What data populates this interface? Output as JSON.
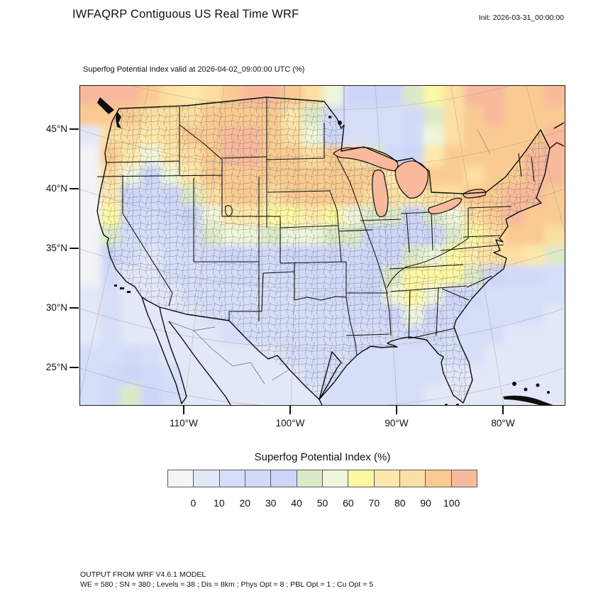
{
  "header": {
    "title": "IWFAQRP Contiguous US Real Time WRF",
    "init_label": "Init: 2026-03-31_00:00:00"
  },
  "map": {
    "subtitle": "Superfog Potential Index valid at 2026-04-02_09:00:00 UTC   (%)",
    "lat_ticks": [
      "45°N",
      "40°N",
      "35°N",
      "30°N",
      "25°N"
    ],
    "lon_ticks": [
      "110°W",
      "100°W",
      "90°W",
      "80°W"
    ]
  },
  "colorbar": {
    "title": "Superfog Potential Index  (%)"
  },
  "footer": {
    "line1": "OUTPUT FROM WRF V4.6.1 MODEL",
    "line2": "WE = 580 ; SN = 380 ; Levels = 38 ; Dis = 8km ; Phys Opt = 8 ; PBL Opt = 1 ; Cu Opt = 5"
  },
  "chart_data": {
    "type": "heatmap",
    "title": "Superfog Potential Index valid at 2026-04-02_09:00:00 UTC (%)",
    "units": "%",
    "legend_title": "Superfog Potential Index  (%)",
    "levels": [
      0,
      10,
      20,
      30,
      40,
      50,
      60,
      70,
      80,
      90,
      100
    ],
    "colors": [
      "#f2f4f8",
      "#e3e8f8",
      "#d6def8",
      "#d2daf8",
      "#cdd5f8",
      "#dce9c8",
      "#eff6dc",
      "#fdf8a2",
      "#fde8ac",
      "#fcdfa2",
      "#f9cb92",
      "#f8b99c"
    ],
    "x_axis_ticks": [
      "110°W",
      "100°W",
      "90°W",
      "80°W"
    ],
    "y_axis_ticks": [
      "45°N",
      "40°N",
      "35°N",
      "30°N",
      "25°N"
    ],
    "grid": {
      "cols": 24,
      "rows": 16,
      "note": "Estimated Superfog Potential Index (%) field on a coarse grid over the plot domain, NW corner first, row-major; values >100 fall in the last (salmon) bin, values <0 in the first (white) bin",
      "values": [
        [
          105,
          105,
          100,
          95,
          85,
          78,
          85,
          95,
          105,
          105,
          95,
          85,
          55,
          35,
          30,
          35,
          45,
          60,
          85,
          100,
          105,
          95,
          95,
          105
        ],
        [
          92,
          95,
          90,
          85,
          80,
          85,
          92,
          95,
          95,
          90,
          75,
          45,
          25,
          18,
          15,
          18,
          25,
          45,
          80,
          95,
          105,
          95,
          92,
          95
        ],
        [
          4,
          85,
          80,
          70,
          80,
          90,
          95,
          105,
          105,
          95,
          85,
          55,
          30,
          15,
          12,
          15,
          25,
          50,
          85,
          95,
          95,
          92,
          92,
          105
        ],
        [
          -2,
          92,
          75,
          55,
          70,
          85,
          95,
          105,
          105,
          95,
          92,
          80,
          92,
          85,
          40,
          20,
          35,
          75,
          95,
          92,
          90,
          95,
          105,
          105
        ],
        [
          -2,
          85,
          55,
          35,
          55,
          75,
          90,
          95,
          95,
          90,
          95,
          95,
          92,
          95,
          90,
          70,
          85,
          95,
          90,
          85,
          92,
          95,
          105,
          105
        ],
        [
          -2,
          70,
          30,
          20,
          30,
          45,
          80,
          90,
          90,
          85,
          90,
          95,
          90,
          92,
          85,
          80,
          75,
          80,
          85,
          90,
          95,
          105,
          105,
          95
        ],
        [
          -2,
          60,
          20,
          15,
          20,
          30,
          55,
          75,
          70,
          60,
          65,
          70,
          60,
          55,
          48,
          40,
          38,
          45,
          55,
          80,
          95,
          105,
          95,
          90
        ],
        [
          -2,
          45,
          15,
          10,
          15,
          25,
          40,
          55,
          50,
          45,
          50,
          55,
          45,
          40,
          35,
          30,
          30,
          35,
          45,
          65,
          85,
          95,
          90,
          80
        ],
        [
          -2,
          30,
          10,
          8,
          12,
          18,
          25,
          30,
          28,
          25,
          30,
          35,
          30,
          28,
          30,
          35,
          42,
          55,
          65,
          72,
          80,
          85,
          70,
          45
        ],
        [
          -2,
          20,
          8,
          5,
          10,
          15,
          18,
          20,
          20,
          18,
          20,
          25,
          25,
          25,
          32,
          48,
          62,
          68,
          60,
          45,
          32,
          25,
          20,
          15
        ],
        [
          3,
          15,
          5,
          5,
          8,
          12,
          15,
          15,
          15,
          15,
          18,
          20,
          20,
          25,
          38,
          58,
          66,
          58,
          38,
          22,
          18,
          15,
          12,
          10
        ],
        [
          5,
          10,
          5,
          5,
          5,
          8,
          10,
          12,
          12,
          12,
          15,
          15,
          15,
          20,
          25,
          38,
          55,
          38,
          22,
          14,
          12,
          10,
          10,
          8
        ],
        [
          8,
          10,
          8,
          5,
          5,
          5,
          8,
          10,
          10,
          10,
          10,
          12,
          12,
          12,
          15,
          18,
          22,
          20,
          15,
          12,
          10,
          8,
          8,
          8
        ],
        [
          10,
          15,
          22,
          10,
          8,
          5,
          8,
          8,
          8,
          8,
          10,
          10,
          10,
          10,
          12,
          12,
          14,
          12,
          10,
          10,
          8,
          8,
          8,
          8
        ],
        [
          10,
          20,
          38,
          25,
          10,
          8,
          8,
          8,
          8,
          8,
          8,
          10,
          10,
          10,
          10,
          10,
          10,
          10,
          8,
          8,
          8,
          8,
          8,
          8
        ],
        [
          12,
          25,
          42,
          30,
          12,
          8,
          8,
          8,
          8,
          8,
          8,
          8,
          10,
          10,
          10,
          10,
          10,
          8,
          8,
          8,
          8,
          8,
          8,
          8
        ]
      ]
    }
  }
}
